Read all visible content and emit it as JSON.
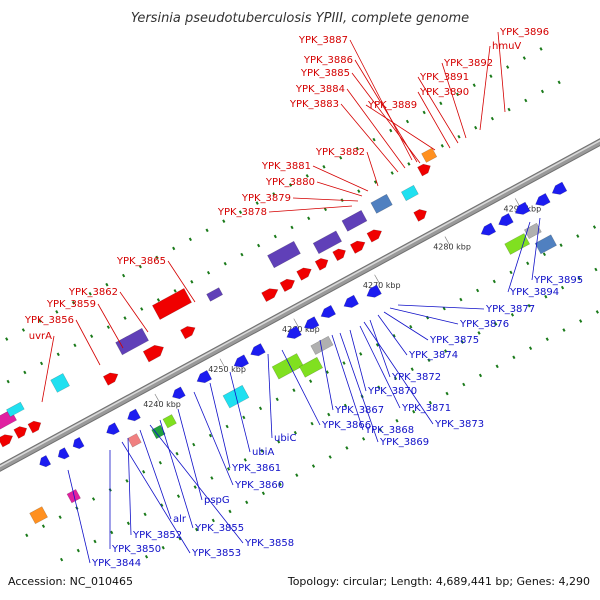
{
  "title": "Yersinia pseudotuberculosis YPIII, complete genome",
  "footer": {
    "accession": "Accession: NC_010465",
    "summary": "Topology: circular; Length: 4,689,441 bp; Genes: 4,290"
  },
  "colors": {
    "forward_label": "#d40000",
    "reverse_label": "#1010c8",
    "backbone": "#9a9a9a",
    "tick": "#1a7a1a"
  },
  "ticks": [
    "4240 kbp",
    "4250 kbp",
    "4260 kbp",
    "4270 kbp",
    "4280 kbp",
    "4290 kbp"
  ],
  "labels_forward": [
    "YPK_3887",
    "YPK_3886",
    "YPK_3885",
    "YPK_3884",
    "YPK_3883",
    "YPK_3889",
    "YPK_3890",
    "YPK_3891",
    "YPK_3892",
    "hmuV",
    "YPK_3896",
    "YPK_3882",
    "YPK_3881",
    "YPK_3880",
    "YPK_3879",
    "YPK_3878",
    "YPK_3865",
    "YPK_3862",
    "YPK_3859",
    "YPK_3856",
    "uvrA"
  ],
  "labels_reverse": [
    "YPK_3895",
    "YPK_3894",
    "YPK_3877",
    "YPK_3876",
    "YPK_3875",
    "YPK_3874",
    "YPK_3872",
    "YPK_3871",
    "YPK_3873",
    "YPK_3870",
    "YPK_3869",
    "YPK_3868",
    "YPK_3867",
    "YPK_3866",
    "ubiC",
    "ubiA",
    "YPK_3861",
    "YPK_3860",
    "pspG",
    "YPK_3855",
    "YPK_3858",
    "alr",
    "YPK_3852",
    "YPK_3853",
    "YPK_3850",
    "YPK_3844"
  ]
}
